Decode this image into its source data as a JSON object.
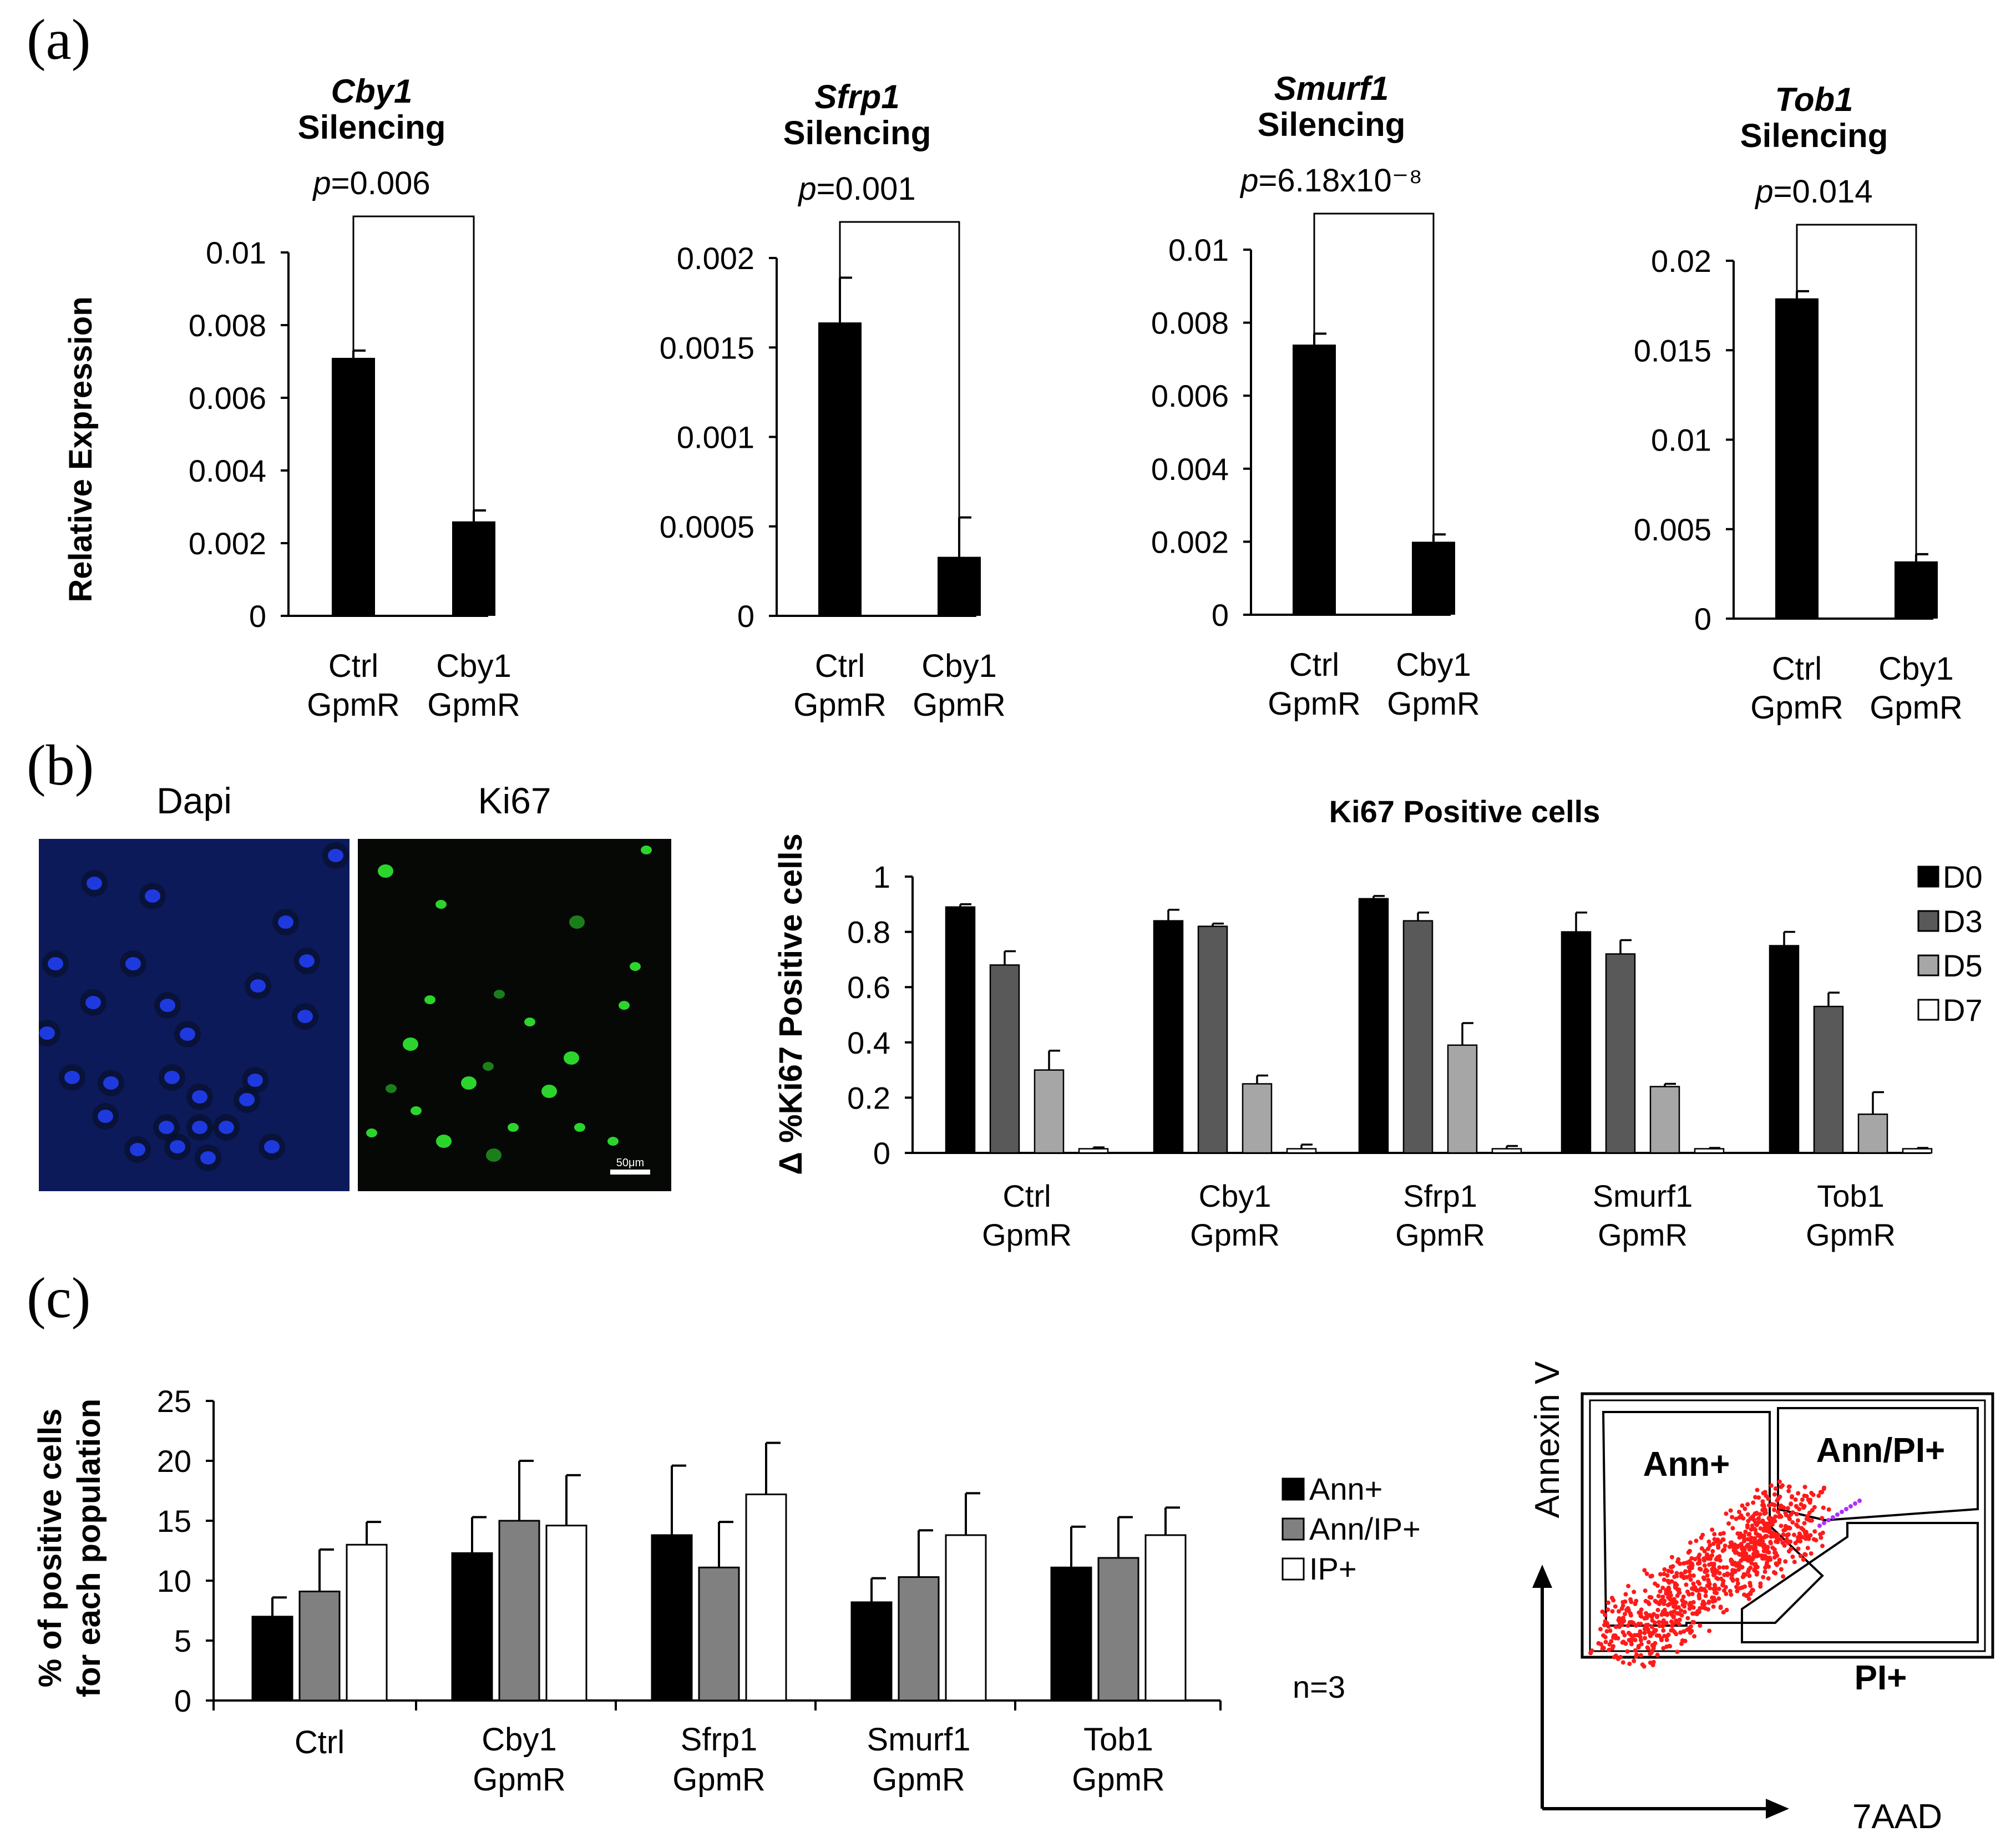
{
  "panel_labels": {
    "a": "(a)",
    "b": "(b)",
    "c": "(c)"
  },
  "micrographs": {
    "dapi_label": "Dapi",
    "ki67_label": "Ki67",
    "scale_bar": "50μm",
    "dapi_color": "#1e3adf",
    "ki67_color": "#2ee02e"
  },
  "chart_data": [
    {
      "type": "bar",
      "title_gene": "Cby1",
      "title_suffix": "Silencing",
      "ylabel": "Relative Expression",
      "ylim": [
        0,
        0.01
      ],
      "yticks": [
        "0",
        "0.002",
        "0.004",
        "0.006",
        "0.008",
        "0.01"
      ],
      "categories": [
        [
          "Ctrl",
          "GpmR"
        ],
        [
          "Cby1",
          "GpmR"
        ]
      ],
      "values": [
        0.0071,
        0.0026
      ],
      "errors": [
        0.0002,
        0.0003
      ],
      "pvalue_prefix": "p",
      "pvalue_text": "=0.006"
    },
    {
      "type": "bar",
      "title_gene": "Sfrp1",
      "title_suffix": "Silencing",
      "ylim": [
        0,
        0.002
      ],
      "yticks": [
        "0",
        "0.0005",
        "0.001",
        "0.0015",
        "0.002"
      ],
      "categories": [
        [
          "Ctrl",
          "GpmR"
        ],
        [
          "Cby1",
          "GpmR"
        ]
      ],
      "values": [
        0.00164,
        0.00033
      ],
      "errors": [
        0.00025,
        0.00022
      ],
      "pvalue_prefix": "p",
      "pvalue_text": "=0.001"
    },
    {
      "type": "bar",
      "title_gene": "Smurf1",
      "title_suffix": "Silencing",
      "ylim": [
        0,
        0.01
      ],
      "yticks": [
        "0",
        "0.002",
        "0.004",
        "0.006",
        "0.008",
        "0.01"
      ],
      "categories": [
        [
          "Ctrl",
          "GpmR"
        ],
        [
          "Cby1",
          "GpmR"
        ]
      ],
      "values": [
        0.0074,
        0.002
      ],
      "errors": [
        0.0003,
        0.0002
      ],
      "pvalue_prefix": "p",
      "pvalue_text": "=6.18x10⁻⁸"
    },
    {
      "type": "bar",
      "title_gene": "Tob1",
      "title_suffix": "Silencing",
      "ylim": [
        0,
        0.02
      ],
      "yticks": [
        "0",
        "0.005",
        "0.01",
        "0.015",
        "0.02"
      ],
      "categories": [
        [
          "Ctrl",
          "GpmR"
        ],
        [
          "Cby1",
          "GpmR"
        ]
      ],
      "values": [
        0.0179,
        0.0032
      ],
      "errors": [
        0.0004,
        0.0004
      ],
      "pvalue_prefix": "p",
      "pvalue_text": "=0.014"
    },
    {
      "type": "bar",
      "title": "Ki67 Positive cells",
      "ylabel": "Δ %Ki67 Positive cells",
      "ylim": [
        0,
        1
      ],
      "yticks": [
        "0",
        "0.2",
        "0.4",
        "0.6",
        "0.8",
        "1"
      ],
      "categories": [
        [
          "Ctrl",
          "GpmR"
        ],
        [
          "Cby1",
          "GpmR"
        ],
        [
          "Sfrp1",
          "GpmR"
        ],
        [
          "Smurf1",
          "GpmR"
        ],
        [
          "Tob1",
          "GpmR"
        ]
      ],
      "series": [
        {
          "name": "D0",
          "color": "#000000",
          "values": [
            0.89,
            0.84,
            0.92,
            0.8,
            0.75
          ],
          "errors": [
            0.01,
            0.04,
            0.01,
            0.07,
            0.05
          ]
        },
        {
          "name": "D3",
          "color": "#595959",
          "values": [
            0.68,
            0.82,
            0.84,
            0.72,
            0.53
          ],
          "errors": [
            0.05,
            0.01,
            0.03,
            0.05,
            0.05
          ]
        },
        {
          "name": "D5",
          "color": "#a6a6a6",
          "values": [
            0.3,
            0.25,
            0.39,
            0.24,
            0.14
          ],
          "errors": [
            0.07,
            0.03,
            0.08,
            0.01,
            0.08
          ]
        },
        {
          "name": "D7",
          "color": "#ffffff",
          "values": [
            0.015,
            0.015,
            0.015,
            0.015,
            0.015
          ],
          "errors": [
            0.005,
            0.015,
            0.01,
            0.003,
            0.003
          ]
        }
      ],
      "legend": "right"
    },
    {
      "type": "bar",
      "ylabel": "% of positive cells for each population",
      "ylabel_line1": "% of positive cells",
      "ylabel_line2": "for each population",
      "ylim": [
        0,
        25
      ],
      "yticks": [
        "0",
        "5",
        "10",
        "15",
        "20",
        "25"
      ],
      "categories": [
        [
          "Ctrl"
        ],
        [
          "Cby1",
          "GpmR"
        ],
        [
          "Sfrp1",
          "GpmR"
        ],
        [
          "Smurf1",
          "GpmR"
        ],
        [
          "Tob1",
          "GpmR"
        ]
      ],
      "series": [
        {
          "name": "Ann+",
          "color": "#000000",
          "values": [
            7,
            12.3,
            13.8,
            8.2,
            11.1
          ],
          "errors": [
            1.6,
            3.0,
            5.8,
            2.0,
            3.4
          ]
        },
        {
          "name": "Ann/IP+",
          "color": "#808080",
          "values": [
            9.1,
            15,
            11.1,
            10.3,
            11.9
          ],
          "errors": [
            3.5,
            5.0,
            3.8,
            3.9,
            3.4
          ]
        },
        {
          "name": "IP+",
          "color": "#ffffff",
          "values": [
            13,
            14.6,
            17.2,
            13.8,
            13.8
          ],
          "errors": [
            1.9,
            4.2,
            4.3,
            3.5,
            2.3
          ]
        }
      ],
      "legend": "right",
      "note": "n=3"
    }
  ],
  "flow_plot": {
    "gates": [
      "Ann+",
      "Ann/PI+",
      "PI+"
    ],
    "xlabel": "7AAD",
    "ylabel": "Annexin V",
    "dot_color": "#ff1a1a"
  }
}
